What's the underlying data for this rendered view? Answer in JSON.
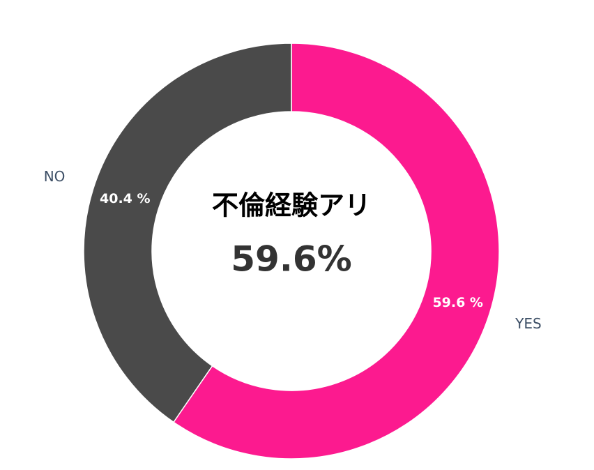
{
  "chart_data": {
    "type": "donut",
    "categories": [
      "YES",
      "NO"
    ],
    "values": [
      59.6,
      40.4
    ],
    "value_labels": [
      "59.6 %",
      "40.4 %"
    ],
    "colors": [
      "#fc1a8f",
      "#4a4a4a"
    ],
    "center_title": "不倫経験アリ",
    "center_value": "59.6%"
  }
}
